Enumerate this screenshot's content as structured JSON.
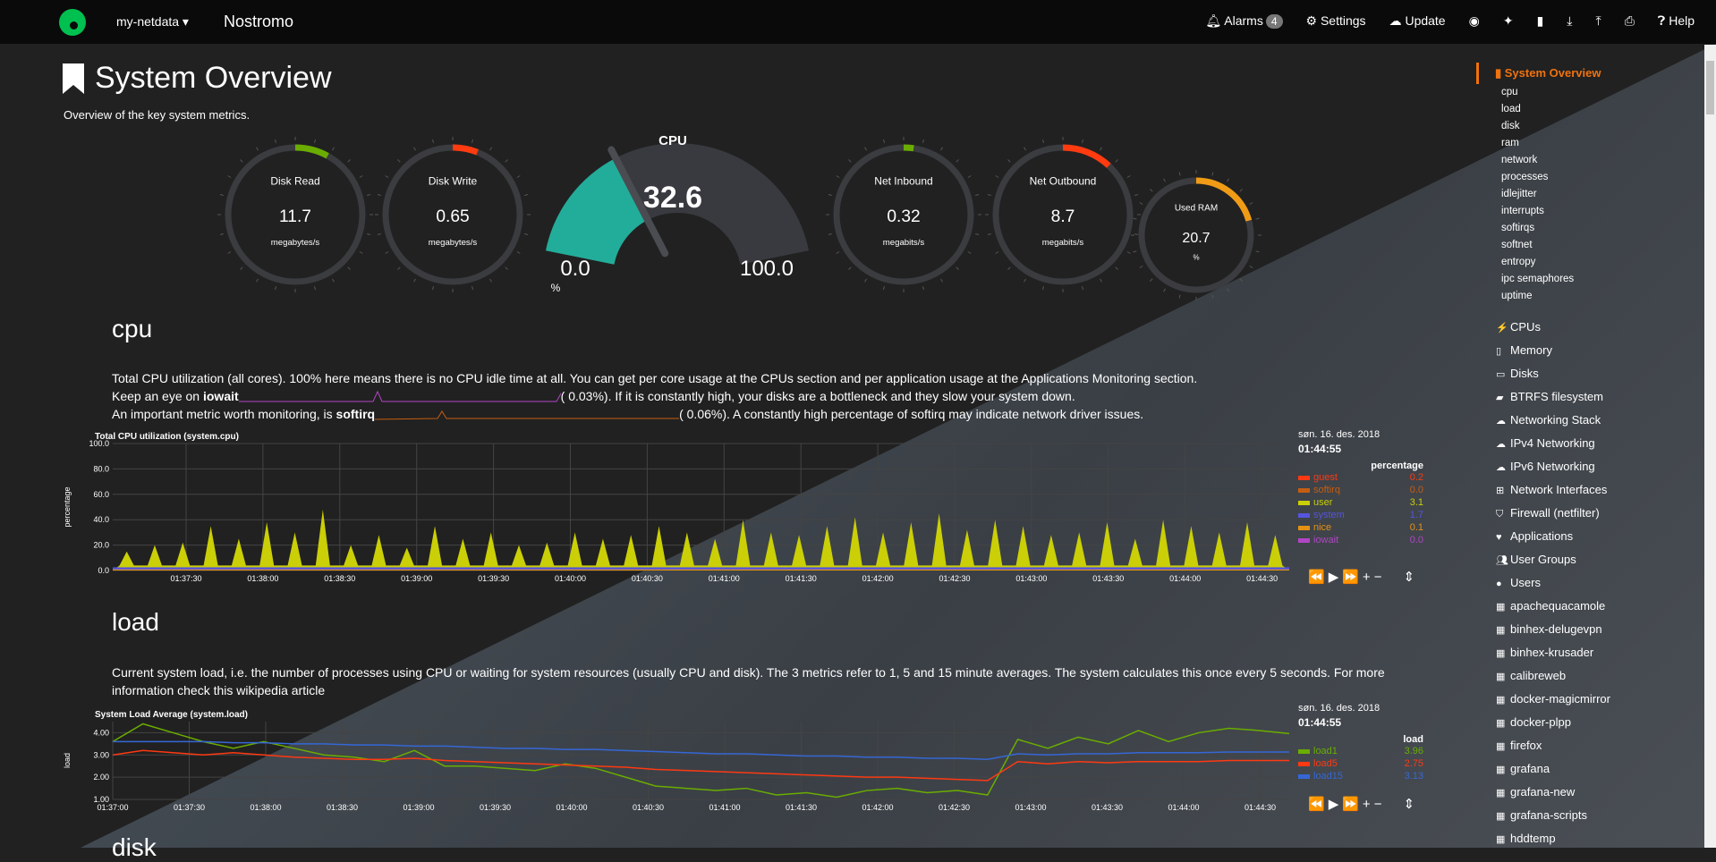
{
  "nav": {
    "brand": "my-netdata ▾",
    "host": "Nostromo",
    "alarms_label": "Alarms",
    "alarms_count": "4",
    "settings": "Settings",
    "update": "Update",
    "help": "Help"
  },
  "page": {
    "title": "System Overview",
    "subtitle": "Overview of the key system metrics."
  },
  "gauges": {
    "disk_read": {
      "title": "Disk Read",
      "value": "11.7",
      "unit": "megabytes/s",
      "fill": 0.08,
      "color": "#6aad00"
    },
    "disk_write": {
      "title": "Disk Write",
      "value": "0.65",
      "unit": "megabytes/s",
      "fill": 0.06,
      "color": "#ff3b0f"
    },
    "cpu": {
      "title": "CPU",
      "value": "32.6",
      "min": "0.0",
      "max": "100.0",
      "unit": "%",
      "fill": 0.326,
      "color": "#22ad9a"
    },
    "net_in": {
      "title": "Net Inbound",
      "value": "0.32",
      "unit": "megabits/s",
      "fill": 0.02,
      "color": "#6aad00"
    },
    "net_out": {
      "title": "Net Outbound",
      "value": "8.7",
      "unit": "megabits/s",
      "fill": 0.12,
      "color": "#ff3b0f"
    },
    "ram": {
      "title": "Used RAM",
      "value": "20.7",
      "unit": "%",
      "fill": 0.207,
      "color": "#f09b16"
    }
  },
  "cpu_section": {
    "heading": "cpu",
    "desc1": "Total CPU utilization (all cores). 100% here means there is no CPU idle time at all. You can get per core usage at the CPUs section and per application usage at the Applications Monitoring section.",
    "iowait_pre": "Keep an eye on ",
    "iowait_b": "iowait",
    "iowait_val": "(      0.03%). If it is constantly high, your disks are a bottleneck and they slow your system down.",
    "softirq_pre": "An important metric worth monitoring, is ",
    "softirq_b": "softirq",
    "softirq_val": "(      0.06%). A constantly high percentage of softirq may indicate network driver issues."
  },
  "load_section": {
    "heading": "load",
    "desc": "Current system load, i.e. the number of processes using CPU or waiting for system resources (usually CPU and disk). The 3 metrics refer to 1, 5 and 15 minute averages. The system calculates this once every 5 seconds. For more information check this wikipedia article"
  },
  "next_heading": "disk",
  "chart_data": [
    {
      "type": "area",
      "title": "Total CPU utilization (system.cpu)",
      "ylabel": "percentage",
      "ylim": [
        0,
        100
      ],
      "yticks": [
        "0.0",
        "20.0",
        "40.0",
        "60.0",
        "80.0",
        "100.0"
      ],
      "xticks": [
        "01:37:30",
        "01:38:00",
        "01:38:30",
        "01:39:00",
        "01:39:30",
        "01:40:00",
        "01:40:30",
        "01:41:00",
        "01:41:30",
        "01:42:00",
        "01:42:30",
        "01:43:00",
        "01:43:30",
        "01:44:00",
        "01:44:30"
      ],
      "date": "søn. 16. des. 2018",
      "time": "01:44:55",
      "units": "percentage",
      "series": [
        {
          "name": "guest",
          "value": "0.2",
          "color": "#fe3912"
        },
        {
          "name": "softirq",
          "value": "0.0",
          "color": "#c55d11"
        },
        {
          "name": "user",
          "value": "3.1",
          "color": "#cacf07"
        },
        {
          "name": "system",
          "value": "1.7",
          "color": "#5555dd"
        },
        {
          "name": "nice",
          "value": "0.1",
          "color": "#e49214"
        },
        {
          "name": "iowait",
          "value": "0.0",
          "color": "#b145c5"
        }
      ],
      "user_peaks": [
        15,
        20,
        22,
        35,
        25,
        38,
        30,
        48,
        20,
        28,
        18,
        35,
        25,
        30,
        20,
        22,
        30,
        25,
        28,
        35,
        30,
        25,
        40,
        30,
        28,
        35,
        42,
        30,
        38,
        45,
        32,
        40,
        35,
        28,
        30,
        38,
        25,
        40,
        35,
        30,
        38,
        28
      ]
    },
    {
      "type": "line",
      "title": "System Load Average (system.load)",
      "ylabel": "load",
      "ylim": [
        1,
        4.5
      ],
      "yticks": [
        "1.00",
        "2.00",
        "3.00",
        "4.00"
      ],
      "xticks": [
        "01:37:00",
        "01:37:30",
        "01:38:00",
        "01:38:30",
        "01:39:00",
        "01:39:30",
        "01:40:00",
        "01:40:30",
        "01:41:00",
        "01:41:30",
        "01:42:00",
        "01:42:30",
        "01:43:00",
        "01:43:30",
        "01:44:00",
        "01:44:30"
      ],
      "date": "søn. 16. des. 2018",
      "time": "01:44:55",
      "units": "load",
      "series": [
        {
          "name": "load1",
          "value": "3.96",
          "color": "#6aad00",
          "values": [
            3.6,
            4.4,
            4.0,
            3.6,
            3.3,
            3.6,
            3.3,
            3.0,
            2.9,
            2.7,
            3.2,
            2.5,
            2.5,
            2.4,
            2.3,
            2.6,
            2.4,
            2.0,
            1.6,
            1.5,
            1.4,
            1.5,
            1.2,
            1.3,
            1.1,
            1.4,
            1.5,
            1.3,
            1.4,
            1.2,
            3.7,
            3.3,
            3.8,
            3.5,
            4.1,
            3.6,
            4.0,
            4.2,
            4.1,
            3.96
          ]
        },
        {
          "name": "load5",
          "value": "2.75",
          "color": "#fe3912",
          "values": [
            3.0,
            3.2,
            3.1,
            3.0,
            3.1,
            3.0,
            2.9,
            2.85,
            2.8,
            2.8,
            2.85,
            2.75,
            2.7,
            2.65,
            2.6,
            2.55,
            2.5,
            2.45,
            2.35,
            2.3,
            2.25,
            2.2,
            2.15,
            2.1,
            2.05,
            2.0,
            2.0,
            1.95,
            1.9,
            1.85,
            2.7,
            2.6,
            2.7,
            2.65,
            2.7,
            2.7,
            2.7,
            2.75,
            2.75,
            2.75
          ]
        },
        {
          "name": "load15",
          "value": "3.13",
          "color": "#3567d6",
          "values": [
            3.6,
            3.6,
            3.6,
            3.6,
            3.55,
            3.55,
            3.5,
            3.5,
            3.45,
            3.45,
            3.4,
            3.4,
            3.35,
            3.3,
            3.3,
            3.25,
            3.25,
            3.2,
            3.15,
            3.1,
            3.05,
            3.05,
            3.0,
            2.95,
            2.95,
            2.9,
            2.9,
            2.85,
            2.85,
            2.8,
            3.05,
            3.0,
            3.05,
            3.05,
            3.1,
            3.1,
            3.1,
            3.13,
            3.13,
            3.13
          ]
        }
      ]
    }
  ],
  "sidebar": {
    "active": "System Overview",
    "sub": [
      "cpu",
      "load",
      "disk",
      "ram",
      "network",
      "processes",
      "idlejitter",
      "interrupts",
      "softirqs",
      "softnet",
      "entropy",
      "ipc semaphores",
      "uptime"
    ],
    "groups": [
      {
        "label": "CPUs",
        "icon": "bolt"
      },
      {
        "label": "Memory",
        "icon": "memory"
      },
      {
        "label": "Disks",
        "icon": "hdd"
      },
      {
        "label": "BTRFS filesystem",
        "icon": "folder"
      },
      {
        "label": "Networking Stack",
        "icon": "cloud"
      },
      {
        "label": "IPv4 Networking",
        "icon": "cloud"
      },
      {
        "label": "IPv6 Networking",
        "icon": "cloud"
      },
      {
        "label": "Network Interfaces",
        "icon": "sitemap"
      },
      {
        "label": "Firewall (netfilter)",
        "icon": "shield"
      },
      {
        "label": "Applications",
        "icon": "heartbeat"
      },
      {
        "label": "User Groups",
        "icon": "users"
      },
      {
        "label": "Users",
        "icon": "user"
      },
      {
        "label": "apachequacamole",
        "icon": "th"
      },
      {
        "label": "binhex-delugevpn",
        "icon": "th"
      },
      {
        "label": "binhex-krusader",
        "icon": "th"
      },
      {
        "label": "calibreweb",
        "icon": "th"
      },
      {
        "label": "docker-magicmirror",
        "icon": "th"
      },
      {
        "label": "docker-plpp",
        "icon": "th"
      },
      {
        "label": "firefox",
        "icon": "th"
      },
      {
        "label": "grafana",
        "icon": "th"
      },
      {
        "label": "grafana-new",
        "icon": "th"
      },
      {
        "label": "grafana-scripts",
        "icon": "th"
      },
      {
        "label": "hddtemp",
        "icon": "th"
      }
    ]
  }
}
